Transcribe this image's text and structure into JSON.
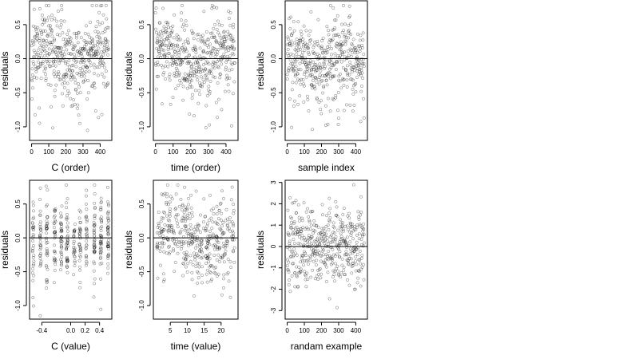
{
  "chart_data": [
    {
      "type": "scatter",
      "xlabel": "C (order)",
      "ylabel": "residuals",
      "xlim": [
        -12,
        468
      ],
      "ylim": [
        -1.2,
        0.85
      ],
      "xticks": [
        0,
        100,
        200,
        300,
        400
      ],
      "xtick_labels": [
        "0",
        "100",
        "200",
        "300",
        "400"
      ],
      "yticks": [
        0.5,
        0,
        -0.5,
        -1.0
      ],
      "ytick_labels": [
        "0.5",
        "0.0",
        "-0.5",
        "-1.0"
      ],
      "hline": 0,
      "grid": false,
      "n_points": 450,
      "seed": 11,
      "points": []
    },
    {
      "type": "scatter",
      "xlabel": "time (order)",
      "ylabel": "residuals",
      "xlim": [
        -12,
        468
      ],
      "ylim": [
        -1.2,
        0.85
      ],
      "xticks": [
        0,
        100,
        200,
        300,
        400
      ],
      "xtick_labels": [
        "0",
        "100",
        "200",
        "300",
        "400"
      ],
      "yticks": [
        0.5,
        0,
        -0.5,
        -1.0
      ],
      "ytick_labels": [
        "0.5",
        "0.0",
        "-0.5",
        "-1.0"
      ],
      "hline": 0,
      "grid": false,
      "n_points": 450,
      "seed": 23,
      "points": []
    },
    {
      "type": "scatter",
      "xlabel": "sample index",
      "ylabel": "residuals",
      "xlim": [
        -12,
        468
      ],
      "ylim": [
        -1.2,
        0.85
      ],
      "xticks": [
        0,
        100,
        200,
        300,
        400
      ],
      "xtick_labels": [
        "0",
        "100",
        "200",
        "300",
        "400"
      ],
      "yticks": [
        0.5,
        0,
        -0.5,
        -1.0
      ],
      "ytick_labels": [
        "0.5",
        "0.0",
        "-0.5",
        "-1.0"
      ],
      "hline": 0,
      "grid": false,
      "n_points": 450,
      "seed": 37,
      "points": []
    },
    {
      "type": "scatter",
      "xlabel": "C (value)",
      "ylabel": "residuals",
      "xlim": [
        -0.57,
        0.57
      ],
      "ylim": [
        -1.2,
        0.85
      ],
      "xticks": [
        -0.4,
        0.0,
        0.2,
        0.4
      ],
      "xtick_labels": [
        "-0.4",
        "0.0",
        "0.2",
        "0.4"
      ],
      "yticks": [
        0.5,
        0,
        -0.5,
        -1.0
      ],
      "ytick_labels": [
        "0.5",
        "0.0",
        "-0.5",
        "-1.0"
      ],
      "hline": 0,
      "grid": false,
      "x_levels": [
        -0.52,
        -0.42,
        -0.33,
        -0.22,
        -0.13,
        -0.05,
        0.05,
        0.13,
        0.22,
        0.33,
        0.42,
        0.52
      ],
      "n_points": 420,
      "seed": 51,
      "points": []
    },
    {
      "type": "scatter",
      "xlabel": "time (value)",
      "ylabel": "residuals",
      "xlim": [
        0,
        25
      ],
      "ylim": [
        -1.2,
        0.85
      ],
      "xticks": [
        5,
        10,
        15,
        20
      ],
      "xtick_labels": [
        "5",
        "10",
        "15",
        "20"
      ],
      "yticks": [
        0.5,
        0,
        -0.5,
        -1.0
      ],
      "ytick_labels": [
        "0.5",
        "0.0",
        "-0.5",
        "-1.0"
      ],
      "hline": 0,
      "grid": false,
      "n_points": 420,
      "seed": 67,
      "points": []
    },
    {
      "type": "scatter",
      "xlabel": "randam example",
      "ylabel": "residuals",
      "xlim": [
        -12,
        468
      ],
      "ylim": [
        -3.4,
        3.1
      ],
      "xticks": [
        0,
        100,
        200,
        300,
        400
      ],
      "xtick_labels": [
        "0",
        "100",
        "200",
        "300",
        "400"
      ],
      "yticks": [
        3,
        2,
        1,
        0,
        -1,
        -2,
        -3
      ],
      "ytick_labels": [
        "3",
        "2",
        "1",
        "0",
        "-1",
        "-2",
        "-3"
      ],
      "hline": 0,
      "grid": false,
      "n_points": 450,
      "seed": 83,
      "points": []
    }
  ]
}
